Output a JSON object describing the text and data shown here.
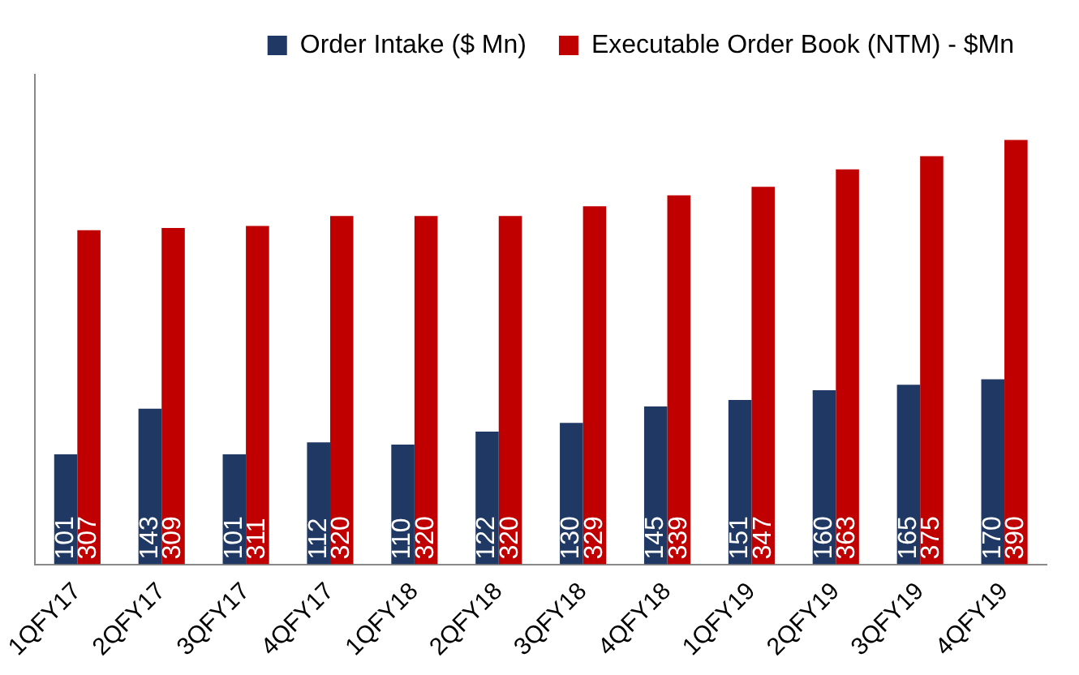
{
  "chart_data": {
    "type": "bar",
    "categories": [
      "1QFY17",
      "2QFY17",
      "3QFY17",
      "4QFY17",
      "1QFY18",
      "2QFY18",
      "3QFY18",
      "4QFY18",
      "1QFY19",
      "2QFY19",
      "3QFY19",
      "4QFY19"
    ],
    "series": [
      {
        "name": "Order Intake ($ Mn)",
        "color": "#1f3864",
        "values": [
          101,
          143,
          101,
          112,
          110,
          122,
          130,
          145,
          151,
          160,
          165,
          170
        ]
      },
      {
        "name": "Executable Order Book (NTM) - $Mn",
        "color": "#c00000",
        "values": [
          307,
          309,
          311,
          320,
          320,
          320,
          329,
          339,
          347,
          363,
          375,
          390
        ]
      }
    ],
    "ylim": [
      0,
      450
    ],
    "tick_labels": "x",
    "grid": false,
    "legend": "top right",
    "data_labels": true
  }
}
